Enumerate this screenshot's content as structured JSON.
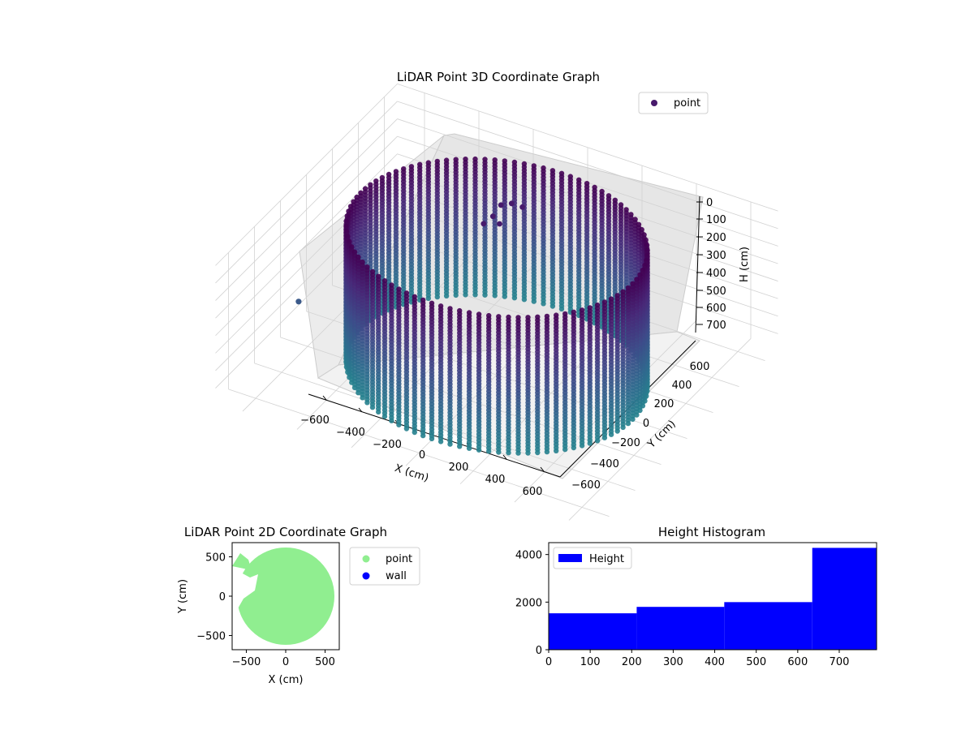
{
  "chart_data": [
    {
      "type": "scatter3d",
      "title": "LiDAR Point 3D Coordinate Graph",
      "xlabel": "X (cm)",
      "ylabel": "Y (cm)",
      "zlabel": "H (cm)",
      "xlim": [
        -700,
        700
      ],
      "ylim": [
        -700,
        700
      ],
      "zlim": [
        0,
        780
      ],
      "z_inverted": true,
      "x_ticks": [
        "−600",
        "−400",
        "−200",
        "0",
        "200",
        "400",
        "600"
      ],
      "y_ticks": [
        "−600",
        "−400",
        "−200",
        "0",
        "200",
        "400",
        "600"
      ],
      "z_ticks": [
        "0",
        "100",
        "200",
        "300",
        "400",
        "500",
        "600",
        "700"
      ],
      "legend": {
        "position": "top-right",
        "entries": [
          {
            "name": "point",
            "color": "#481a6c"
          }
        ]
      },
      "colormap": "viridis",
      "description_shape": "cylindrical wall of radius ~500 cm, heights 0–780 cm",
      "series": [
        {
          "name": "point",
          "radius": 500,
          "center": [
            0,
            0
          ],
          "h_range": [
            0,
            780
          ]
        }
      ]
    },
    {
      "type": "scatter",
      "title": "LiDAR Point 2D Coordinate Graph",
      "xlabel": "X (cm)",
      "ylabel": "Y (cm)",
      "xlim": [
        -680,
        680
      ],
      "ylim": [
        -680,
        680
      ],
      "x_ticks": [
        "−500",
        "0",
        "500"
      ],
      "y_ticks": [
        "−500",
        "0",
        "500"
      ],
      "legend": {
        "position": "outside-right",
        "entries": [
          {
            "name": "point",
            "color": "#90ee90"
          },
          {
            "name": "wall",
            "color": "#0000ff"
          }
        ]
      },
      "series": [
        {
          "name": "point",
          "radius": 600,
          "center": [
            0,
            0
          ]
        }
      ]
    },
    {
      "type": "bar",
      "title": "Height Histogram",
      "xlabel": "",
      "ylabel": "",
      "xlim": [
        0,
        790
      ],
      "ylim": [
        0,
        4500
      ],
      "x_ticks": [
        "0",
        "100",
        "200",
        "300",
        "400",
        "500",
        "600",
        "700"
      ],
      "y_ticks": [
        "0",
        "2000",
        "4000"
      ],
      "legend": {
        "position": "top-left",
        "entries": [
          {
            "name": "Height",
            "color": "#0000ff"
          }
        ]
      },
      "bins": [
        {
          "from": 0,
          "to": 212,
          "count": 1530
        },
        {
          "from": 212,
          "to": 423,
          "count": 1800
        },
        {
          "from": 423,
          "to": 635,
          "count": 2000
        },
        {
          "from": 635,
          "to": 790,
          "count": 4280
        }
      ]
    }
  ]
}
